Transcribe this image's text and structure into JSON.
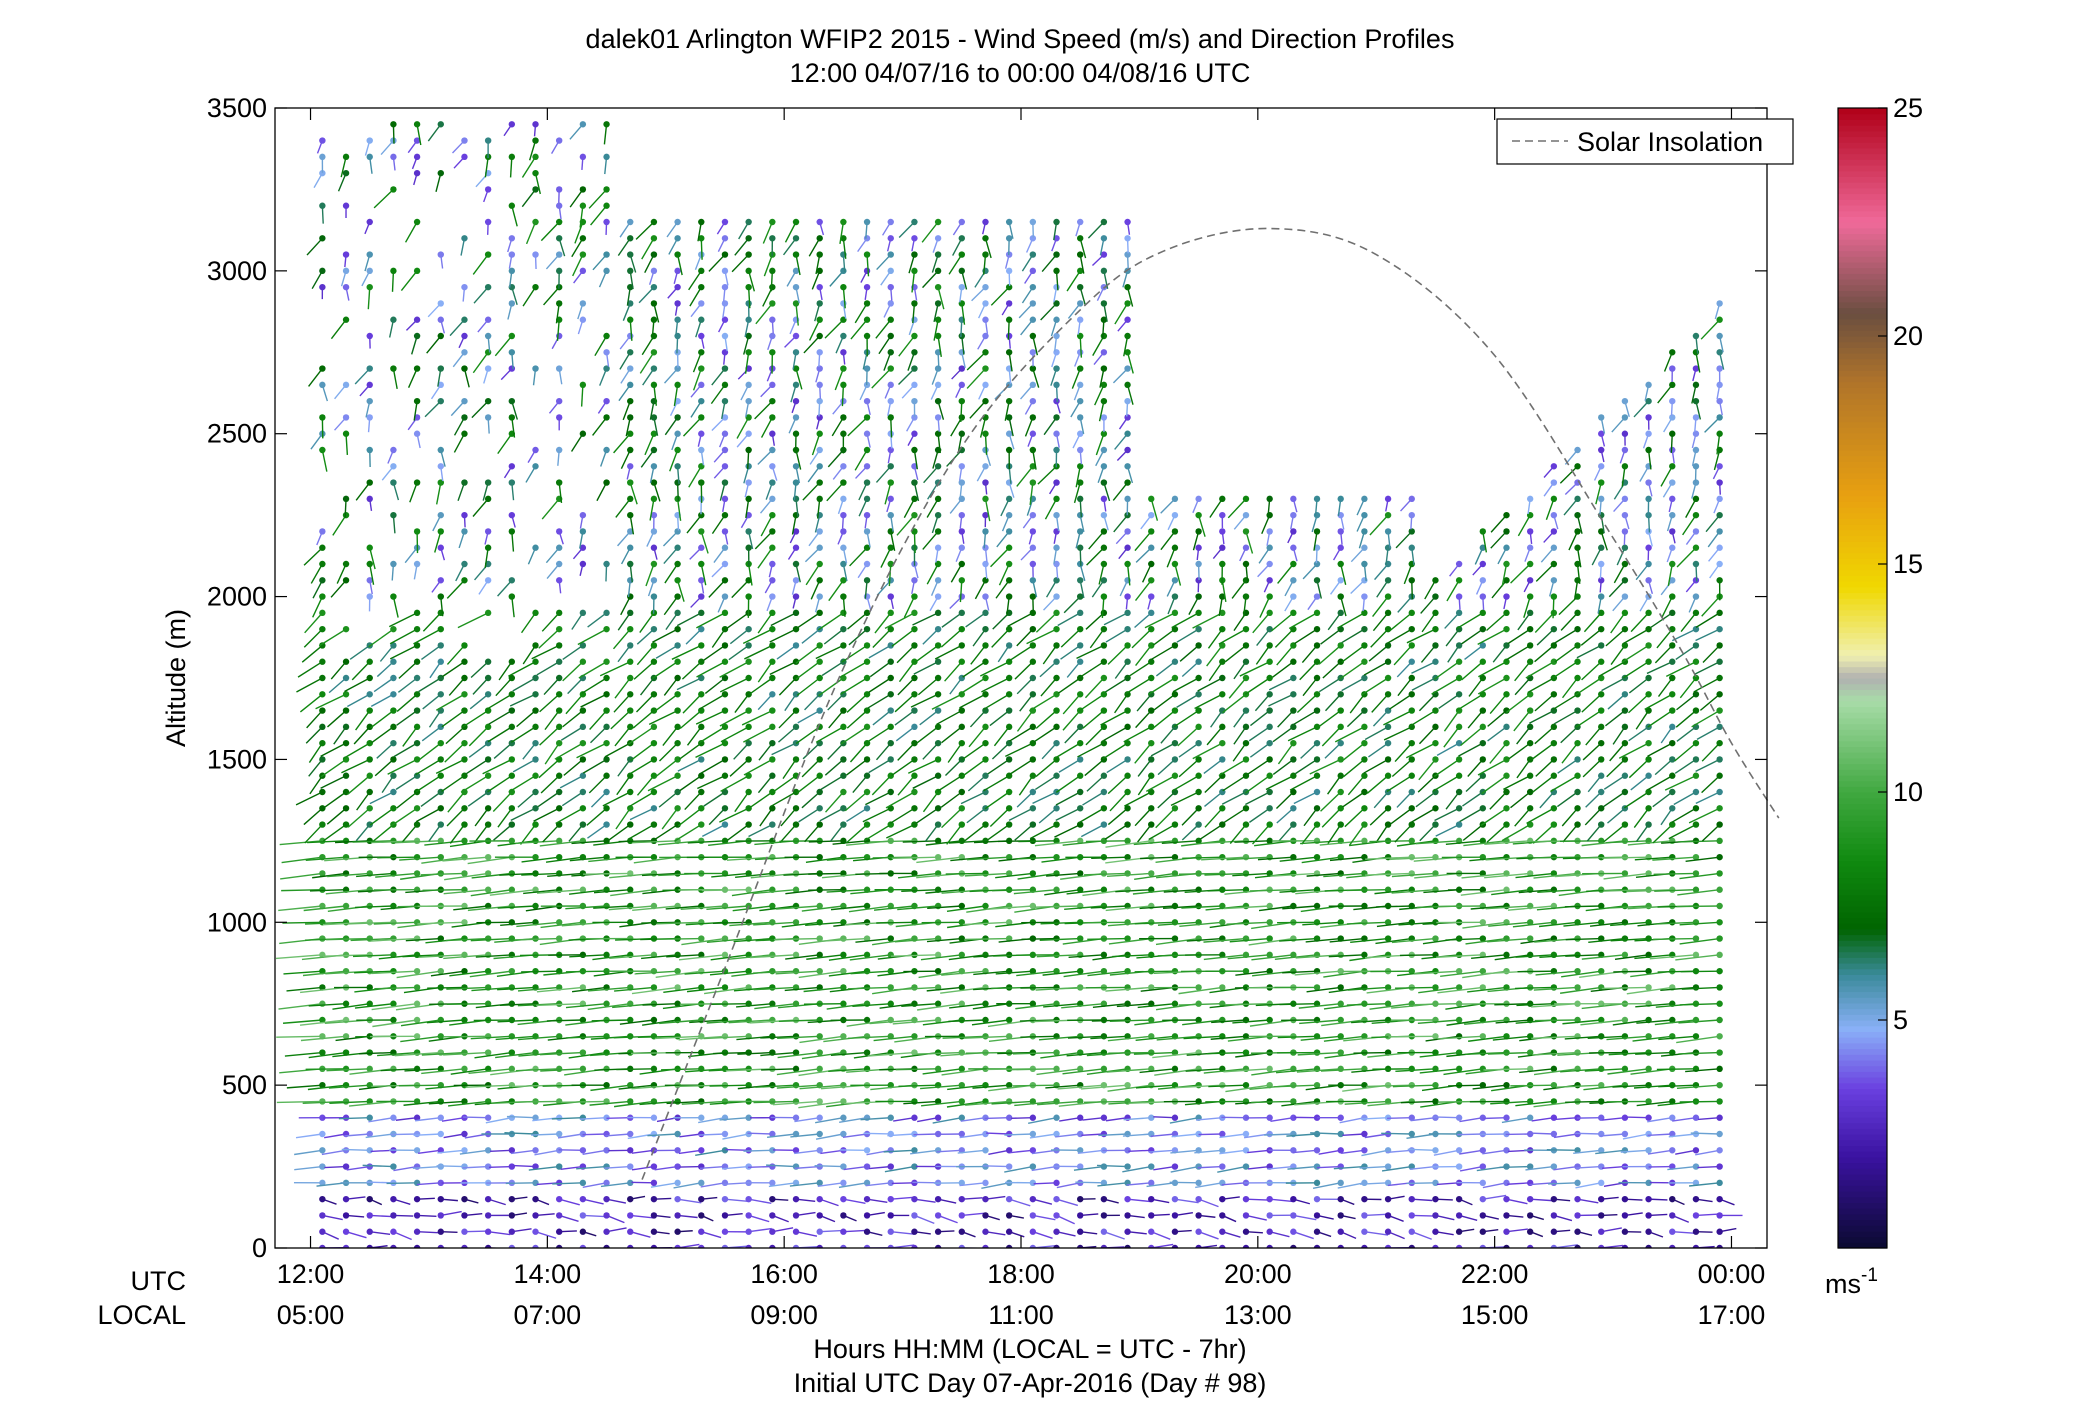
{
  "chart_data": {
    "type": "scatter",
    "title": "dalek01 Arlington WFIP2 2015 - Wind Speed (m/s) and Direction Profiles",
    "subtitle": "12:00 04/07/16 to 00:00 04/08/16  UTC",
    "ylabel": "Altitude (m)",
    "xlabel": "Hours HH:MM  (LOCAL = UTC - 7hr)",
    "xlabel2": "Initial UTC Day 07-Apr-2016 (Day # 98)",
    "x_row_labels": [
      "UTC",
      "LOCAL"
    ],
    "xlim": [
      11.7,
      24.3
    ],
    "ylim": [
      0,
      3500
    ],
    "y_ticks": [
      0,
      500,
      1000,
      1500,
      2000,
      2500,
      3000,
      3500
    ],
    "x_ticks_utc": [
      "12:00",
      "14:00",
      "16:00",
      "18:00",
      "20:00",
      "22:00",
      "00:00"
    ],
    "x_ticks_local": [
      "05:00",
      "07:00",
      "09:00",
      "11:00",
      "13:00",
      "15:00",
      "17:00"
    ],
    "x_tick_hours": [
      12,
      14,
      16,
      18,
      20,
      22,
      24
    ],
    "colorbar": {
      "ticks": [
        5,
        10,
        15,
        20,
        25
      ],
      "range": [
        0,
        25
      ],
      "unit_label": "ms",
      "unit_exponent": "-1",
      "stops": [
        {
          "v": 0,
          "c": "#0a0a30"
        },
        {
          "v": 2,
          "c": "#3a12a0"
        },
        {
          "v": 3.5,
          "c": "#6a40e0"
        },
        {
          "v": 4.8,
          "c": "#8ab0f8"
        },
        {
          "v": 6,
          "c": "#3a8a9a"
        },
        {
          "v": 7,
          "c": "#006400"
        },
        {
          "v": 8.5,
          "c": "#108a10"
        },
        {
          "v": 10,
          "c": "#40a840"
        },
        {
          "v": 12,
          "c": "#a8dca8"
        },
        {
          "v": 12.5,
          "c": "#b0b0b0"
        },
        {
          "v": 13,
          "c": "#f0f0b0"
        },
        {
          "v": 14.5,
          "c": "#f0d800"
        },
        {
          "v": 16.5,
          "c": "#e8a010"
        },
        {
          "v": 19,
          "c": "#b0742a"
        },
        {
          "v": 20.5,
          "c": "#6a4e40"
        },
        {
          "v": 22.5,
          "c": "#f06a9a"
        },
        {
          "v": 25,
          "c": "#b00018"
        }
      ]
    },
    "series": [
      {
        "name": "Solar Insolation",
        "style": "dashed",
        "color": "#707070",
        "x": [
          14.8,
          15.5,
          16.5,
          17.5,
          18.5,
          19.2,
          20.1,
          21.0,
          22.0,
          23.0,
          23.6,
          24.0,
          24.4
        ],
        "y": [
          210,
          860,
          1780,
          2460,
          2880,
          3060,
          3130,
          3050,
          2740,
          2180,
          1820,
          1550,
          1320
        ]
      }
    ],
    "barbs": {
      "x_start": 12.1,
      "x_end": 24.0,
      "x_step": 0.2,
      "y_step": 50,
      "description_fields": [
        "x",
        "y",
        "speed",
        "direction"
      ],
      "regimes": [
        {
          "y": [
            0,
            200
          ],
          "speed": [
            1,
            4
          ],
          "direction": [
            70,
            130
          ]
        },
        {
          "y": [
            200,
            450
          ],
          "speed": [
            3,
            6
          ],
          "direction": [
            250,
            275
          ]
        },
        {
          "y": [
            450,
            1300
          ],
          "speed": [
            7,
            11
          ],
          "direction": [
            255,
            270
          ]
        },
        {
          "y": [
            1300,
            2000
          ],
          "speed": [
            6,
            9
          ],
          "direction": [
            200,
            230
          ]
        },
        {
          "y": [
            2000,
            3500
          ],
          "speed": [
            3,
            9
          ],
          "direction": [
            170,
            210
          ]
        }
      ]
    },
    "legend": {
      "position": "top-right",
      "entries": [
        "Solar Insolation"
      ]
    },
    "grid": false
  }
}
